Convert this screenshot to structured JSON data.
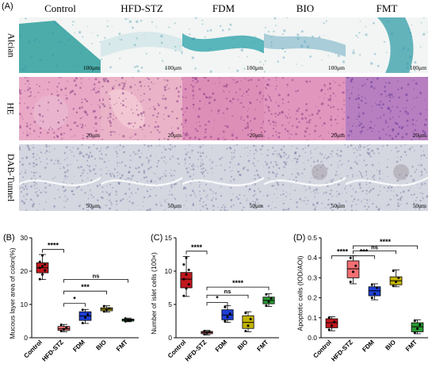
{
  "figure": {
    "panel_a_letter": "(A)",
    "groups": [
      "Control",
      "HFD-STZ",
      "FDM",
      "BIO",
      "FMT"
    ],
    "rows": [
      {
        "label": "Alcian",
        "scale": "100μm"
      },
      {
        "label": "HE",
        "scale": "20μm"
      },
      {
        "label": "DAB-Tunnel",
        "scale": "50μm"
      }
    ]
  },
  "colors": {
    "Control": "#c0181d",
    "HFD-STZ": "#f36f72",
    "FDM": "#1f3fd6",
    "BIO": "#c3b400",
    "FMT": "#2a9b34"
  },
  "chart_data": [
    {
      "panel": "(B)",
      "type": "box",
      "ylabel": "Mucous layer area of colon(%)",
      "ylim": [
        0,
        30
      ],
      "yticks": [
        0,
        10,
        20,
        30
      ],
      "categories": [
        "Control",
        "HFD-STZ",
        "FDM",
        "BIO",
        "FMT"
      ],
      "boxes": [
        {
          "min": 17.5,
          "q1": 19.5,
          "median": 21,
          "q3": 22.5,
          "max": 25,
          "points": [
            17.6,
            19,
            20.2,
            21,
            21.5,
            22,
            22.8,
            24.7
          ]
        },
        {
          "min": 1.8,
          "q1": 2.2,
          "median": 2.7,
          "q3": 3.4,
          "max": 4,
          "points": [
            2,
            2.6,
            3.1,
            3.9
          ]
        },
        {
          "min": 4.3,
          "q1": 5.2,
          "median": 6.5,
          "q3": 7.8,
          "max": 8.5,
          "points": [
            4.4,
            6,
            7,
            8.4
          ]
        },
        {
          "min": 7.7,
          "q1": 8.1,
          "median": 8.6,
          "q3": 9,
          "max": 9.6,
          "points": [
            7.9,
            8.4,
            8.8,
            9.5
          ]
        },
        {
          "min": 4.8,
          "q1": 5,
          "median": 5.3,
          "q3": 5.6,
          "max": 5.9,
          "points": [
            4.9,
            5.2,
            5.4,
            5.8
          ]
        }
      ],
      "comparisons": [
        {
          "from": "Control",
          "to": "HFD-STZ",
          "label": "****",
          "y": 26.5
        },
        {
          "from": "HFD-STZ",
          "to": "FDM",
          "label": "*",
          "y": 10.3
        },
        {
          "from": "HFD-STZ",
          "to": "BIO",
          "label": "***",
          "y": 14
        },
        {
          "from": "HFD-STZ",
          "to": "FMT",
          "label": "ns",
          "y": 17.5
        }
      ]
    },
    {
      "panel": "(C)",
      "type": "box",
      "ylabel": "Number of islet cells (100×)",
      "ylim": [
        0,
        15
      ],
      "yticks": [
        0,
        5,
        10,
        15
      ],
      "categories": [
        "Control",
        "HFD-STZ",
        "FDM",
        "BIO",
        "FMT"
      ],
      "boxes": [
        {
          "min": 6.2,
          "q1": 7.5,
          "median": 8.8,
          "q3": 9.8,
          "max": 12.2,
          "points": [
            6.3,
            7.4,
            8,
            8.8,
            9.5,
            10.2,
            11,
            12
          ]
        },
        {
          "min": 0.4,
          "q1": 0.6,
          "median": 0.8,
          "q3": 0.95,
          "max": 1.1,
          "points": [
            0.5,
            0.7,
            0.9,
            1
          ]
        },
        {
          "min": 2.3,
          "q1": 2.7,
          "median": 3.4,
          "q3": 4.2,
          "max": 4.8,
          "points": [
            2.5,
            3.1,
            3.6,
            4.6
          ]
        },
        {
          "min": 0.9,
          "q1": 1.4,
          "median": 2.3,
          "q3": 3.3,
          "max": 3.9,
          "points": [
            1,
            1.8,
            2.8,
            3.7
          ]
        },
        {
          "min": 4.7,
          "q1": 5.1,
          "median": 5.6,
          "q3": 6.1,
          "max": 6.6,
          "points": [
            4.8,
            5.4,
            5.9,
            6.5
          ]
        }
      ],
      "comparisons": [
        {
          "from": "Control",
          "to": "HFD-STZ",
          "label": "****",
          "y": 13
        },
        {
          "from": "HFD-STZ",
          "to": "FDM",
          "label": "*",
          "y": 5.3
        },
        {
          "from": "HFD-STZ",
          "to": "BIO",
          "label": "ns",
          "y": 6.4
        },
        {
          "from": "HFD-STZ",
          "to": "FMT",
          "label": "****",
          "y": 7.6
        }
      ]
    },
    {
      "panel": "(D)",
      "type": "box",
      "ylabel": "Apoptotic cells (IOD/AOI)",
      "ylim": [
        0,
        0.5
      ],
      "yticks": [
        0,
        0.1,
        0.2,
        0.3,
        0.4,
        0.5
      ],
      "ytick_labels": [
        "0.0",
        "0.1",
        "0.2",
        "0.3",
        "0.4",
        "0.5"
      ],
      "categories": [
        "Control",
        "HFD-STZ",
        "FDM",
        "BIO",
        "FMT"
      ],
      "boxes": [
        {
          "min": 0.035,
          "q1": 0.05,
          "median": 0.075,
          "q3": 0.095,
          "max": 0.105,
          "points": [
            0.04,
            0.06,
            0.08,
            0.1
          ]
        },
        {
          "min": 0.27,
          "q1": 0.3,
          "median": 0.345,
          "q3": 0.385,
          "max": 0.41,
          "points": [
            0.28,
            0.33,
            0.36,
            0.4
          ]
        },
        {
          "min": 0.19,
          "q1": 0.21,
          "median": 0.235,
          "q3": 0.255,
          "max": 0.27,
          "points": [
            0.2,
            0.22,
            0.25,
            0.265
          ]
        },
        {
          "min": 0.255,
          "q1": 0.265,
          "median": 0.285,
          "q3": 0.305,
          "max": 0.34,
          "points": [
            0.26,
            0.28,
            0.3,
            0.335
          ]
        },
        {
          "min": 0.02,
          "q1": 0.03,
          "median": 0.055,
          "q3": 0.075,
          "max": 0.09,
          "points": [
            0.025,
            0.045,
            0.065,
            0.085
          ]
        }
      ],
      "comparisons": [
        {
          "from": "Control",
          "to": "HFD-STZ",
          "label": "****",
          "y": 0.41
        },
        {
          "from": "HFD-STZ",
          "to": "FDM",
          "label": "***",
          "y": 0.41
        },
        {
          "from": "HFD-STZ",
          "to": "BIO",
          "label": "ns",
          "y": 0.435
        },
        {
          "from": "HFD-STZ",
          "to": "FMT",
          "label": "****",
          "y": 0.46
        }
      ]
    }
  ]
}
